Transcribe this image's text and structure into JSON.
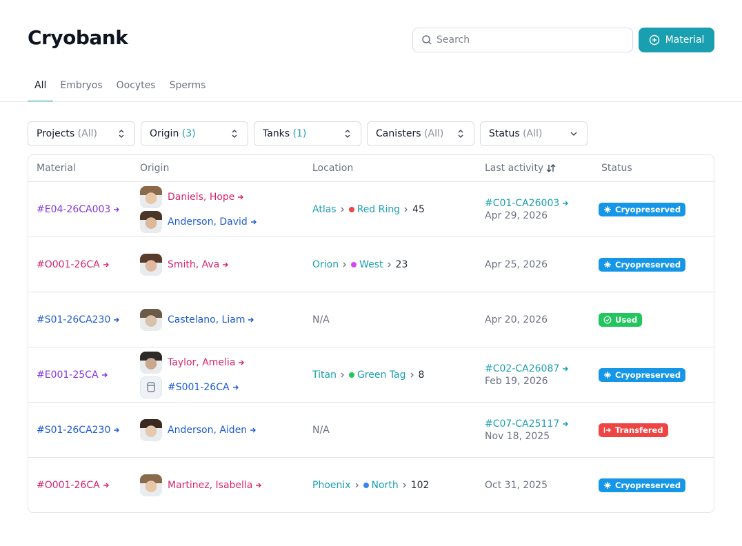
{
  "header": {
    "title": "Cryobank",
    "search_placeholder": "Search",
    "button": "Material"
  },
  "tabs": {
    "items": [
      "All",
      "Embryos",
      "Oocytes",
      "Sperms"
    ],
    "active": 0,
    "active_color": "#1a9fb0"
  },
  "filters": [
    {
      "label": "Projects",
      "value": "(All)",
      "value_color": "#8a8f98"
    },
    {
      "label": "Origin",
      "value": "(3)",
      "value_color": "#1a9fb0"
    },
    {
      "label": "Tanks",
      "value": "(1)",
      "value_color": "#1a9fb0"
    },
    {
      "label": "Canisters",
      "value": "(All)",
      "value_color": "#8a8f98"
    },
    {
      "label": "Status",
      "value": "(All)",
      "value_color": "#8a8f98"
    }
  ],
  "table": {
    "columns": [
      "Material",
      "Origin",
      "Location",
      "Last activity",
      "Status"
    ],
    "rows": [
      {
        "material": {
          "text": "#E04-26CA003",
          "color": "#8435de"
        },
        "origin": [
          {
            "name": "Daniels, Hope",
            "color": "#d6246e"
          },
          {
            "name": "Anderson, David",
            "color": "#1d5ad6"
          }
        ],
        "location": {
          "tank": "Atlas",
          "canister": "Red Ring",
          "dot": "#ef4444",
          "position": 45
        },
        "activity": {
          "ref": "#C01-CA26003",
          "date": "Apr 29, 2026"
        },
        "status": {
          "label": "Cryopreserved",
          "color": "#1596e6"
        }
      },
      {
        "material": {
          "text": "#O001-26CA",
          "color": "#d6246e"
        },
        "origin": [
          {
            "name": "Smith, Ava",
            "color": "#d6246e"
          }
        ],
        "location": {
          "tank": "Orion",
          "canister": "West",
          "dot": "#d946ef",
          "position": 23
        },
        "activity": {
          "date": "Apr 25, 2026"
        },
        "status": {
          "label": "Cryopreserved",
          "color": "#1596e6"
        }
      },
      {
        "material": {
          "text": "#S01-26CA230",
          "color": "#1d5ad6"
        },
        "origin": [
          {
            "name": "Castelano, Liam",
            "color": "#1d5ad6"
          }
        ],
        "location": "N/A",
        "activity": {
          "date": "Apr 20, 2026"
        },
        "status": {
          "label": "Used",
          "color": "#22c55e"
        }
      },
      {
        "material": {
          "text": "#E001-25CA",
          "color": "#8435de"
        },
        "origin": [
          {
            "name": "Taylor, Amelia",
            "color": "#d6246e"
          },
          {
            "name": "#S001-26CA",
            "color": "#1d5ad6"
          }
        ],
        "location": {
          "tank": "Titan",
          "canister": "Green Tag",
          "dot": "#22c55e",
          "position": 8
        },
        "activity": {
          "ref": "#C02-CA26087",
          "date": "Feb 19, 2026"
        },
        "status": {
          "label": "Cryopreserved",
          "color": "#1596e6"
        }
      },
      {
        "material": {
          "text": "#S01-26CA230",
          "color": "#1d5ad6"
        },
        "origin": [
          {
            "name": "Anderson, Aiden",
            "color": "#1d5ad6"
          }
        ],
        "location": "N/A",
        "activity": {
          "ref": "#C07-CA25117",
          "date": "Nov 18, 2025"
        },
        "status": {
          "label": "Transfered",
          "color": "#ef4444"
        }
      },
      {
        "material": {
          "text": "#O001-26CA",
          "color": "#d6246e"
        },
        "origin": [
          {
            "name": "Martinez, Isabella",
            "color": "#d6246e"
          }
        ],
        "location": {
          "tank": "Phoenix",
          "canister": "North",
          "dot": "#3b82f6",
          "position": 102
        },
        "activity": {
          "date": "Oct 31, 2025"
        },
        "status": {
          "label": "Cryopreserved",
          "color": "#1596e6"
        }
      }
    ]
  }
}
